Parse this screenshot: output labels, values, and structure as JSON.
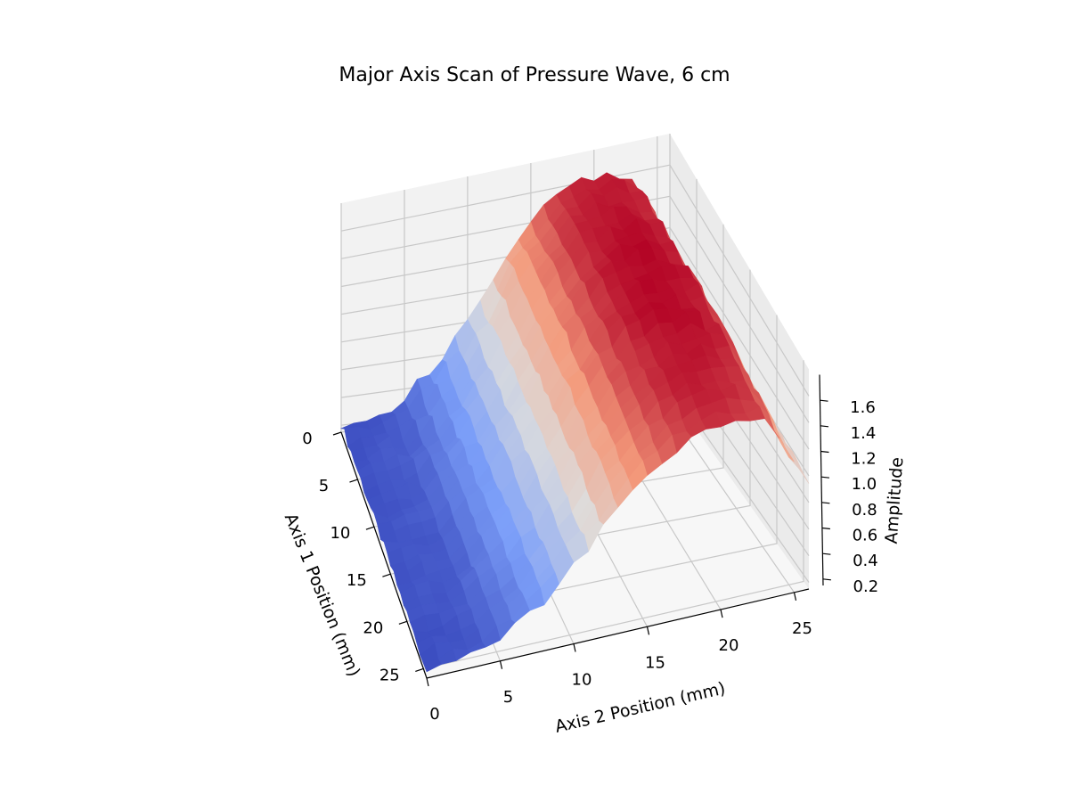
{
  "chart_data": {
    "type": "surface",
    "title": "Major Axis Scan of Pressure Wave, 6 cm",
    "xlabel": "Axis 1 Position (mm)",
    "ylabel": "Axis 2 Position (mm)",
    "zlabel": "Amplitude",
    "x_ticks": [
      "0",
      "5",
      "10",
      "15",
      "20",
      "25"
    ],
    "y_ticks": [
      "0",
      "5",
      "10",
      "15",
      "20",
      "25"
    ],
    "z_ticks": [
      "0.2",
      "0.4",
      "0.6",
      "0.8",
      "1.0",
      "1.2",
      "1.4",
      "1.6"
    ],
    "xlim": [
      0,
      26
    ],
    "ylim": [
      0,
      26
    ],
    "zlim": [
      0.15,
      1.8
    ],
    "colormap": "coolwarm",
    "grid": true,
    "surface_profile": {
      "axis2_mm": [
        0,
        4,
        8,
        11,
        13,
        15,
        17,
        19,
        21,
        23,
        24,
        25,
        26
      ],
      "amplitude": [
        0.22,
        0.28,
        0.6,
        0.95,
        1.25,
        1.45,
        1.6,
        1.67,
        1.68,
        1.62,
        1.45,
        1.2,
        1.0
      ]
    }
  }
}
